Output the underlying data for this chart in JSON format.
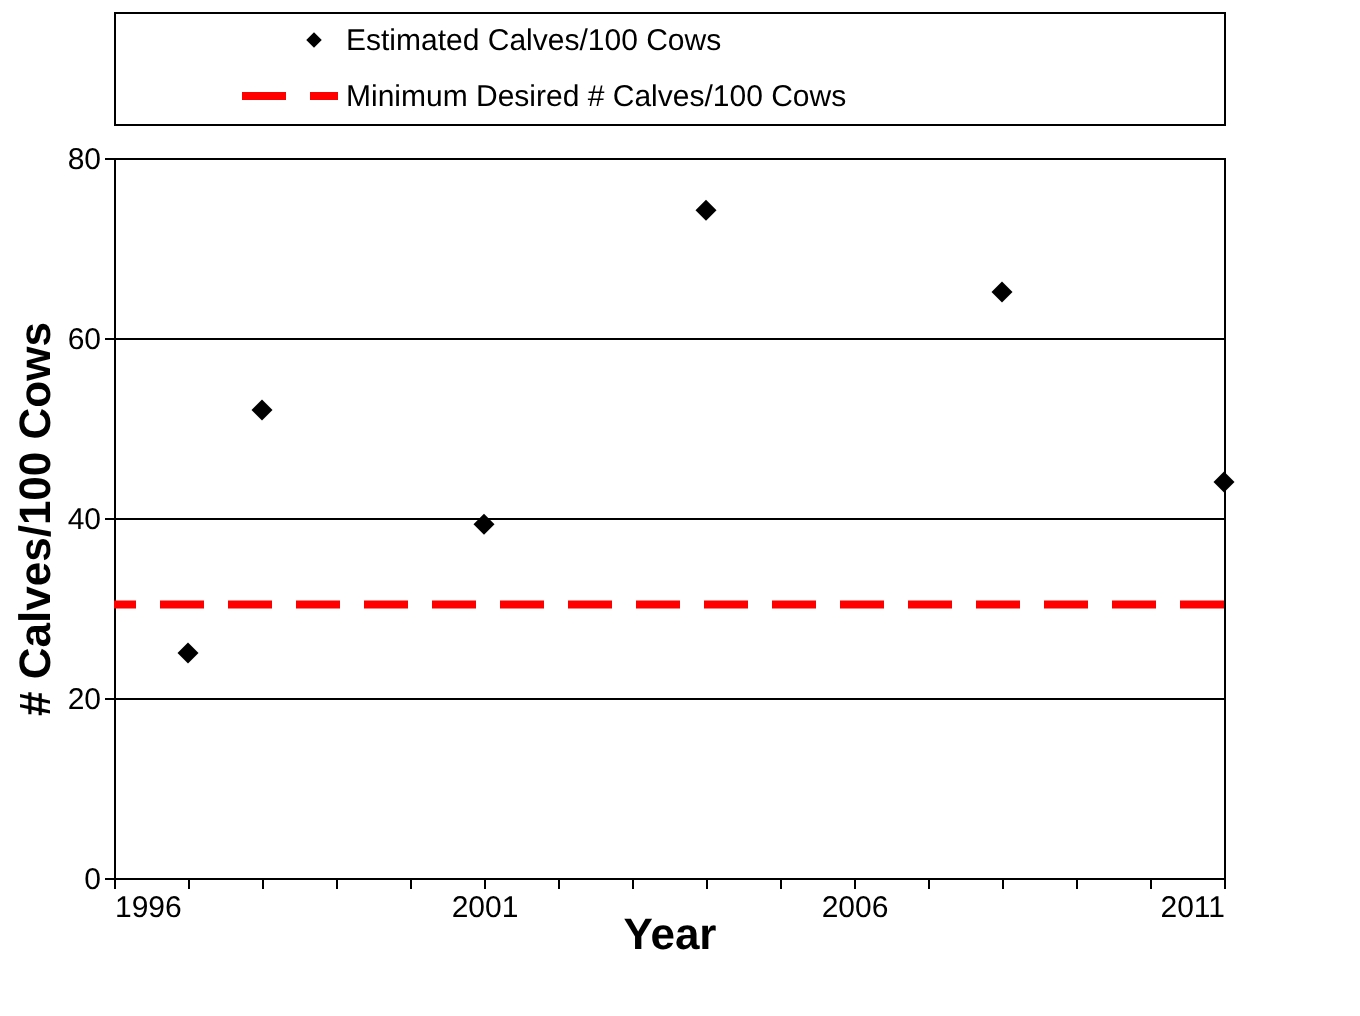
{
  "chart_data": {
    "type": "scatter",
    "xlabel": "Year",
    "ylabel": "# Calves/100 Cows",
    "x": [
      1997,
      1998,
      2001,
      2004,
      2008,
      2011
    ],
    "series": [
      {
        "name": "Estimated Calves/100 Cows",
        "color": "#000000",
        "values": [
          25,
          52,
          39.3,
          74.2,
          65.1,
          44
        ]
      }
    ],
    "marker": "diamond",
    "ref_lines": [
      {
        "axis": "y",
        "value": 30.4,
        "label": "Minimum Desired # Calves/100 Cows",
        "color": "#ff0000",
        "line_style": "dashed"
      }
    ],
    "xlim": [
      1996,
      2011
    ],
    "xticks": [
      1996,
      {
        "value": 1997,
        "label": null
      },
      {
        "value": 1998,
        "label": null
      },
      {
        "value": 1999,
        "label": null
      },
      {
        "value": 2000,
        "label": null
      },
      2001,
      {
        "value": 2002,
        "label": null
      },
      {
        "value": 2003,
        "label": null
      },
      {
        "value": 2004,
        "label": null
      },
      {
        "value": 2005,
        "label": null
      },
      2006,
      {
        "value": 2007,
        "label": null
      },
      {
        "value": 2008,
        "label": null
      },
      {
        "value": 2009,
        "label": null
      },
      {
        "value": 2010,
        "label": null
      },
      2011
    ],
    "ylim": [
      0,
      80
    ],
    "yticks": [
      0,
      20,
      40,
      60,
      80
    ],
    "grid": "y",
    "legend": "top"
  }
}
